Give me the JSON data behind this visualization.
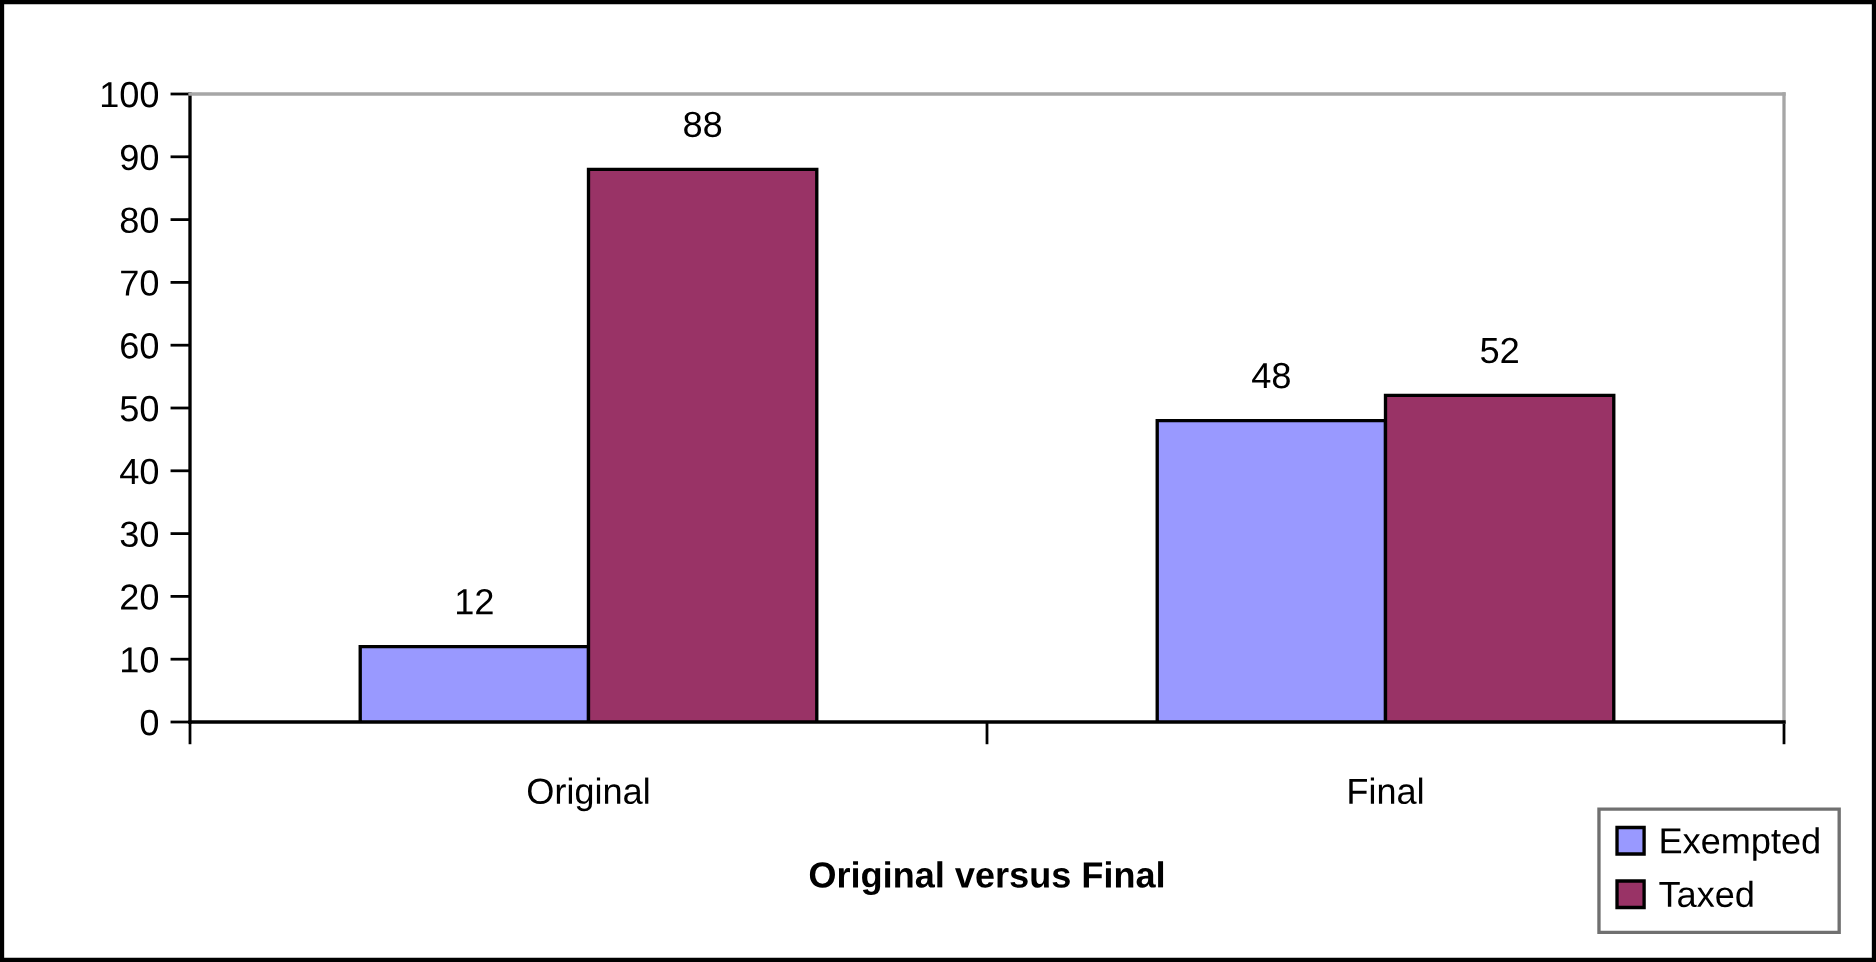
{
  "chart_data": {
    "type": "bar",
    "xlabel": "Original versus Final",
    "categories": [
      "Original",
      "Final"
    ],
    "series": [
      {
        "name": "Exempted",
        "color": "#9999ff",
        "values": [
          12,
          48
        ]
      },
      {
        "name": "Taxed",
        "color": "#993366",
        "values": [
          88,
          52
        ]
      }
    ],
    "ylim": [
      0,
      100
    ],
    "yticks": [
      0,
      10,
      20,
      30,
      40,
      50,
      60,
      70,
      80,
      90,
      100
    ],
    "data_labels": true,
    "legend": "bottom right"
  }
}
